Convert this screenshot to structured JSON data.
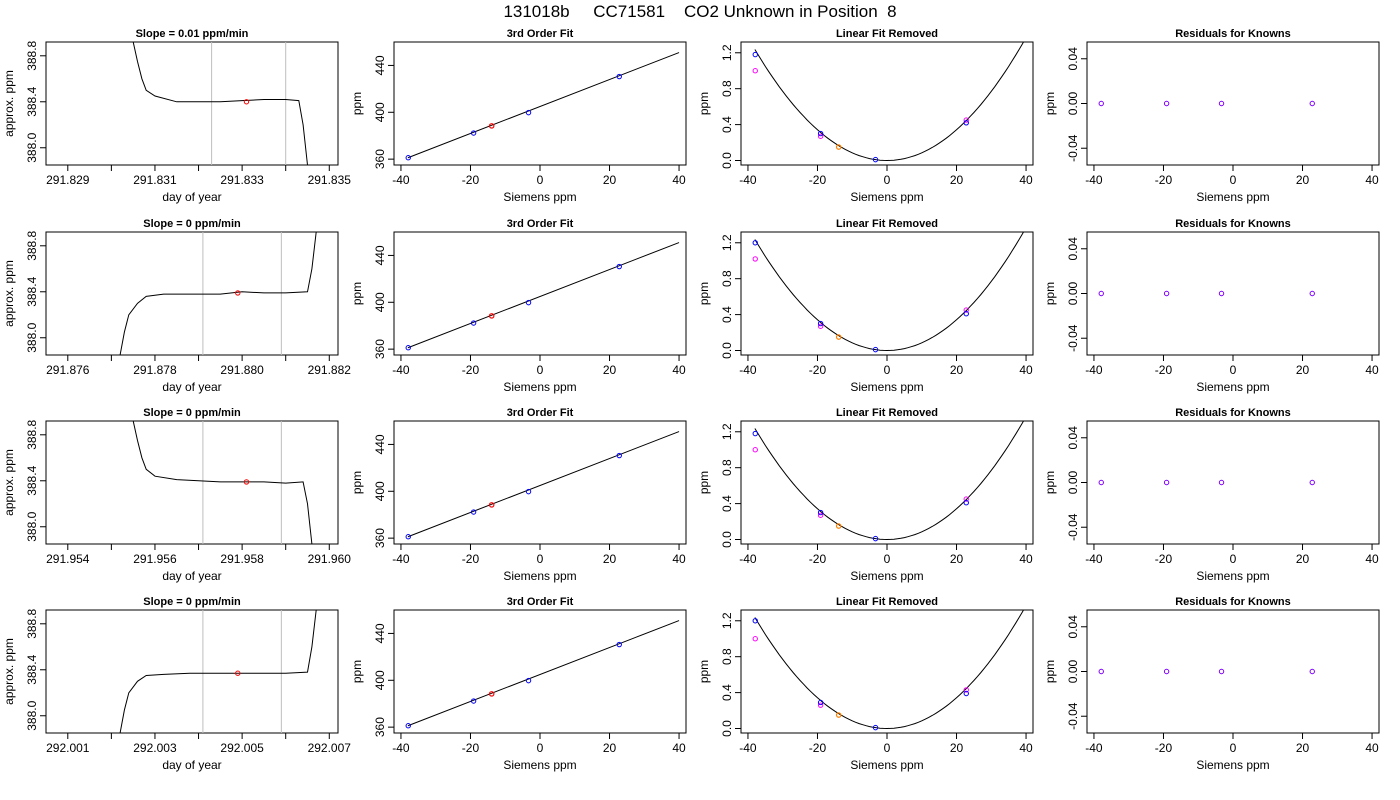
{
  "header": {
    "title": "131018b     CC71581    CO2 Unknown in Position  8"
  },
  "chart_data": [
    {
      "type": "line",
      "row": 0,
      "col": 0,
      "title": "Slope =  0.01  ppm/min",
      "xlabel": "day of year",
      "ylabel": "approx. ppm",
      "xlim": [
        291.8285,
        291.8352
      ],
      "ylim": [
        387.85,
        388.92
      ],
      "xticks": [
        "291.829",
        "291.830",
        "291.831",
        "291.832",
        "291.833",
        "291.834",
        "291.835"
      ],
      "xtick_labels": [
        "291.829",
        "",
        "291.831",
        "",
        "291.833",
        "",
        "291.835"
      ],
      "yticks": [
        "388.0",
        "388.4",
        "388.8"
      ],
      "vlines": [
        291.8323,
        291.834
      ],
      "trace": [
        [
          291.8305,
          388.92
        ],
        [
          291.8306,
          388.75
        ],
        [
          291.8307,
          388.6
        ],
        [
          291.8308,
          388.5
        ],
        [
          291.831,
          388.45
        ],
        [
          291.8315,
          388.4
        ],
        [
          291.832,
          388.4
        ],
        [
          291.8325,
          388.4
        ],
        [
          291.833,
          388.41
        ],
        [
          291.8335,
          388.42
        ],
        [
          291.834,
          388.42
        ],
        [
          291.8343,
          388.41
        ],
        [
          291.8344,
          388.2
        ],
        [
          291.8345,
          387.85
        ]
      ],
      "marker": [
        291.8331,
        388.4
      ]
    },
    {
      "type": "scatter",
      "row": 0,
      "col": 1,
      "title": "3rd Order Fit",
      "xlabel": "Siemens ppm",
      "ylabel": "ppm",
      "xlim": [
        -42,
        42
      ],
      "ylim": [
        355,
        460
      ],
      "xticks": [
        "-40",
        "-20",
        "0",
        "20",
        "40"
      ],
      "yticks": [
        "360",
        "400",
        "440"
      ],
      "fit_line": [
        [
          -38,
          361.2
        ],
        [
          40,
          451
        ]
      ],
      "points_known": [
        [
          -37.9,
          361.2
        ],
        [
          -19.1,
          382.3
        ],
        [
          -3.3,
          399.7
        ],
        [
          22.8,
          430.5
        ]
      ],
      "point_unknown": [
        -13.9,
        388.4
      ]
    },
    {
      "type": "scatter",
      "row": 0,
      "col": 2,
      "title": "Linear Fit Removed",
      "xlabel": "Siemens ppm",
      "ylabel": "ppm",
      "xlim": [
        -42,
        42
      ],
      "ylim": [
        -0.05,
        1.32
      ],
      "xticks": [
        "-40",
        "-20",
        "0",
        "20",
        "40"
      ],
      "yticks": [
        "0.0",
        "0.4",
        "0.8",
        "1.2"
      ],
      "curve": {
        "a": 0.000856,
        "vertex": 0,
        "xmin": -38,
        "xmax": 40
      },
      "points_known": [
        [
          -37.9,
          1.18
        ],
        [
          -19.1,
          0.3
        ],
        [
          -3.3,
          0.01
        ],
        [
          22.8,
          0.42
        ]
      ],
      "points_magenta": [
        [
          -37.9,
          1.0
        ],
        [
          -19.1,
          0.27
        ],
        [
          22.8,
          0.45
        ]
      ],
      "point_unknown": [
        -13.9,
        0.15
      ]
    },
    {
      "type": "scatter",
      "row": 0,
      "col": 3,
      "title": "Residuals for Knowns",
      "xlabel": "Siemens ppm",
      "ylabel": "ppm",
      "xlim": [
        -42,
        42
      ],
      "ylim": [
        -0.055,
        0.055
      ],
      "xticks": [
        "-40",
        "-20",
        "0",
        "20",
        "40"
      ],
      "yticks": [
        "-0.04",
        "0.00",
        "0.04"
      ],
      "points": [
        [
          -37.9,
          0
        ],
        [
          -19.1,
          0
        ],
        [
          -3.3,
          0
        ],
        [
          22.8,
          0
        ]
      ]
    },
    {
      "type": "line",
      "row": 1,
      "col": 0,
      "title": "Slope =  0  ppm/min",
      "xlabel": "day of year",
      "ylabel": "approx. ppm",
      "xlim": [
        291.8755,
        291.8822
      ],
      "ylim": [
        387.85,
        388.92
      ],
      "xticks": [
        "291.876",
        "291.877",
        "291.878",
        "291.879",
        "291.880",
        "291.881",
        "291.882"
      ],
      "xtick_labels": [
        "291.876",
        "",
        "291.878",
        "",
        "291.880",
        "",
        "291.882"
      ],
      "yticks": [
        "388.0",
        "388.4",
        "388.8"
      ],
      "vlines": [
        291.8791,
        291.8809
      ],
      "trace": [
        [
          291.8772,
          387.85
        ],
        [
          291.8773,
          388.05
        ],
        [
          291.8774,
          388.2
        ],
        [
          291.8776,
          388.3
        ],
        [
          291.8778,
          388.36
        ],
        [
          291.8782,
          388.38
        ],
        [
          291.8788,
          388.38
        ],
        [
          291.8795,
          388.38
        ],
        [
          291.88,
          388.4
        ],
        [
          291.8805,
          388.39
        ],
        [
          291.881,
          388.39
        ],
        [
          291.8815,
          388.4
        ],
        [
          291.8816,
          388.6
        ],
        [
          291.8817,
          388.92
        ]
      ],
      "marker": [
        291.8799,
        388.39
      ]
    },
    {
      "type": "scatter",
      "row": 1,
      "col": 1,
      "title": "3rd Order Fit",
      "xlabel": "Siemens ppm",
      "ylabel": "ppm",
      "xlim": [
        -42,
        42
      ],
      "ylim": [
        355,
        460
      ],
      "xticks": [
        "-40",
        "-20",
        "0",
        "20",
        "40"
      ],
      "yticks": [
        "360",
        "400",
        "440"
      ],
      "fit_line": [
        [
          -38,
          361.2
        ],
        [
          40,
          451
        ]
      ],
      "points_known": [
        [
          -37.9,
          361.2
        ],
        [
          -19.1,
          382.3
        ],
        [
          -3.3,
          399.7
        ],
        [
          22.8,
          430.5
        ]
      ],
      "point_unknown": [
        -13.9,
        388.4
      ]
    },
    {
      "type": "scatter",
      "row": 1,
      "col": 2,
      "title": "Linear Fit Removed",
      "xlabel": "Siemens ppm",
      "ylabel": "ppm",
      "xlim": [
        -42,
        42
      ],
      "ylim": [
        -0.05,
        1.32
      ],
      "xticks": [
        "-40",
        "-20",
        "0",
        "20",
        "40"
      ],
      "yticks": [
        "0.0",
        "0.4",
        "0.8",
        "1.2"
      ],
      "curve": {
        "a": 0.000856,
        "vertex": 0,
        "xmin": -38,
        "xmax": 40
      },
      "points_known": [
        [
          -37.9,
          1.2
        ],
        [
          -19.1,
          0.3
        ],
        [
          -3.3,
          0.01
        ],
        [
          22.8,
          0.41
        ]
      ],
      "points_magenta": [
        [
          -37.9,
          1.02
        ],
        [
          -19.1,
          0.27
        ],
        [
          22.8,
          0.45
        ]
      ],
      "point_unknown": [
        -13.9,
        0.15
      ]
    },
    {
      "type": "scatter",
      "row": 1,
      "col": 3,
      "title": "Residuals for Knowns",
      "xlabel": "Siemens ppm",
      "ylabel": "ppm",
      "xlim": [
        -42,
        42
      ],
      "ylim": [
        -0.055,
        0.055
      ],
      "xticks": [
        "-40",
        "-20",
        "0",
        "20",
        "40"
      ],
      "yticks": [
        "-0.04",
        "0.00",
        "0.04"
      ],
      "points": [
        [
          -37.9,
          0
        ],
        [
          -19.1,
          0
        ],
        [
          -3.3,
          0
        ],
        [
          22.8,
          0
        ]
      ]
    },
    {
      "type": "line",
      "row": 2,
      "col": 0,
      "title": "Slope =  0  ppm/min",
      "xlabel": "day of year",
      "ylabel": "approx. ppm",
      "xlim": [
        291.9535,
        291.9602
      ],
      "ylim": [
        387.85,
        388.92
      ],
      "xticks": [
        "291.954",
        "291.955",
        "291.956",
        "291.957",
        "291.958",
        "291.959",
        "291.960"
      ],
      "xtick_labels": [
        "291.954",
        "",
        "291.956",
        "",
        "291.958",
        "",
        "291.960"
      ],
      "yticks": [
        "388.0",
        "388.4",
        "388.8"
      ],
      "vlines": [
        291.9571,
        291.9589
      ],
      "trace": [
        [
          291.9555,
          388.92
        ],
        [
          291.9556,
          388.75
        ],
        [
          291.9557,
          388.6
        ],
        [
          291.9558,
          388.5
        ],
        [
          291.956,
          388.44
        ],
        [
          291.9565,
          388.41
        ],
        [
          291.957,
          388.4
        ],
        [
          291.9575,
          388.39
        ],
        [
          291.958,
          388.39
        ],
        [
          291.9585,
          388.39
        ],
        [
          291.959,
          388.38
        ],
        [
          291.9594,
          388.39
        ],
        [
          291.9595,
          388.2
        ],
        [
          291.9596,
          387.85
        ]
      ],
      "marker": [
        291.9581,
        388.39
      ]
    },
    {
      "type": "scatter",
      "row": 2,
      "col": 1,
      "title": "3rd Order Fit",
      "xlabel": "Siemens ppm",
      "ylabel": "ppm",
      "xlim": [
        -42,
        42
      ],
      "ylim": [
        355,
        460
      ],
      "xticks": [
        "-40",
        "-20",
        "0",
        "20",
        "40"
      ],
      "yticks": [
        "360",
        "400",
        "440"
      ],
      "fit_line": [
        [
          -38,
          361.2
        ],
        [
          40,
          451
        ]
      ],
      "points_known": [
        [
          -37.9,
          361.2
        ],
        [
          -19.1,
          382.3
        ],
        [
          -3.3,
          399.7
        ],
        [
          22.8,
          430.5
        ]
      ],
      "point_unknown": [
        -13.9,
        388.4
      ]
    },
    {
      "type": "scatter",
      "row": 2,
      "col": 2,
      "title": "Linear Fit Removed",
      "xlabel": "Siemens ppm",
      "ylabel": "ppm",
      "xlim": [
        -42,
        42
      ],
      "ylim": [
        -0.05,
        1.32
      ],
      "xticks": [
        "-40",
        "-20",
        "0",
        "20",
        "40"
      ],
      "yticks": [
        "0.0",
        "0.4",
        "0.8",
        "1.2"
      ],
      "curve": {
        "a": 0.000856,
        "vertex": 0,
        "xmin": -38,
        "xmax": 40
      },
      "points_known": [
        [
          -37.9,
          1.18
        ],
        [
          -19.1,
          0.3
        ],
        [
          -3.3,
          0.01
        ],
        [
          22.8,
          0.41
        ]
      ],
      "points_magenta": [
        [
          -37.9,
          1.0
        ],
        [
          -19.1,
          0.27
        ],
        [
          22.8,
          0.45
        ]
      ],
      "point_unknown": [
        -13.9,
        0.15
      ]
    },
    {
      "type": "scatter",
      "row": 2,
      "col": 3,
      "title": "Residuals for Knowns",
      "xlabel": "Siemens ppm",
      "ylabel": "ppm",
      "xlim": [
        -42,
        42
      ],
      "ylim": [
        -0.055,
        0.055
      ],
      "xticks": [
        "-40",
        "-20",
        "0",
        "20",
        "40"
      ],
      "yticks": [
        "-0.04",
        "0.00",
        "0.04"
      ],
      "points": [
        [
          -37.9,
          0
        ],
        [
          -19.1,
          0
        ],
        [
          -3.3,
          0
        ],
        [
          22.8,
          0
        ]
      ]
    },
    {
      "type": "line",
      "row": 3,
      "col": 0,
      "title": "Slope =  0  ppm/min",
      "xlabel": "day of year",
      "ylabel": "approx. ppm",
      "xlim": [
        292.0005,
        292.0072
      ],
      "ylim": [
        387.85,
        388.92
      ],
      "xticks": [
        "292.001",
        "292.002",
        "292.003",
        "292.004",
        "292.005",
        "292.006",
        "292.007"
      ],
      "xtick_labels": [
        "292.001",
        "",
        "292.003",
        "",
        "292.005",
        "",
        "292.007"
      ],
      "yticks": [
        "388.0",
        "388.4",
        "388.8"
      ],
      "vlines": [
        292.0041,
        292.0059
      ],
      "trace": [
        [
          292.0022,
          387.85
        ],
        [
          292.0023,
          388.05
        ],
        [
          292.0024,
          388.2
        ],
        [
          292.0026,
          388.3
        ],
        [
          292.0028,
          388.35
        ],
        [
          292.0032,
          388.36
        ],
        [
          292.0038,
          388.37
        ],
        [
          292.0045,
          388.37
        ],
        [
          292.005,
          388.37
        ],
        [
          292.0055,
          388.37
        ],
        [
          292.006,
          388.37
        ],
        [
          292.0065,
          388.38
        ],
        [
          292.0066,
          388.6
        ],
        [
          292.0067,
          388.92
        ]
      ],
      "marker": [
        292.0049,
        388.37
      ]
    },
    {
      "type": "scatter",
      "row": 3,
      "col": 1,
      "title": "3rd Order Fit",
      "xlabel": "Siemens ppm",
      "ylabel": "ppm",
      "xlim": [
        -42,
        42
      ],
      "ylim": [
        355,
        460
      ],
      "xticks": [
        "-40",
        "-20",
        "0",
        "20",
        "40"
      ],
      "yticks": [
        "360",
        "400",
        "440"
      ],
      "fit_line": [
        [
          -38,
          361.2
        ],
        [
          40,
          451
        ]
      ],
      "points_known": [
        [
          -37.9,
          361.2
        ],
        [
          -19.1,
          382.3
        ],
        [
          -3.3,
          399.7
        ],
        [
          22.8,
          430.5
        ]
      ],
      "point_unknown": [
        -13.9,
        388.4
      ]
    },
    {
      "type": "scatter",
      "row": 3,
      "col": 2,
      "title": "Linear Fit Removed",
      "xlabel": "Siemens ppm",
      "ylabel": "ppm",
      "xlim": [
        -42,
        42
      ],
      "ylim": [
        -0.05,
        1.32
      ],
      "xticks": [
        "-40",
        "-20",
        "0",
        "20",
        "40"
      ],
      "yticks": [
        "0.0",
        "0.4",
        "0.8",
        "1.2"
      ],
      "curve": {
        "a": 0.000856,
        "vertex": 0,
        "xmin": -38,
        "xmax": 40
      },
      "points_known": [
        [
          -37.9,
          1.2
        ],
        [
          -19.1,
          0.29
        ],
        [
          -3.3,
          0.01
        ],
        [
          22.8,
          0.39
        ]
      ],
      "points_magenta": [
        [
          -37.9,
          1.0
        ],
        [
          -19.1,
          0.26
        ],
        [
          22.8,
          0.43
        ]
      ],
      "point_unknown": [
        -13.9,
        0.15
      ]
    },
    {
      "type": "scatter",
      "row": 3,
      "col": 3,
      "title": "Residuals for Knowns",
      "xlabel": "Siemens ppm",
      "ylabel": "ppm",
      "xlim": [
        -42,
        42
      ],
      "ylim": [
        -0.055,
        0.055
      ],
      "xticks": [
        "-40",
        "-20",
        "0",
        "20",
        "40"
      ],
      "yticks": [
        "-0.04",
        "0.00",
        "0.04"
      ],
      "points": [
        [
          -37.9,
          0
        ],
        [
          -19.1,
          0
        ],
        [
          -3.3,
          0
        ],
        [
          22.8,
          0
        ]
      ]
    }
  ],
  "colors": {
    "trace": "#000000",
    "known": "#0000ff",
    "magenta": "#ff00ff",
    "unknown": "#ff0000",
    "unknown_fit": "#ff8000",
    "vline": "#bebebe",
    "residual": "#8000ff"
  }
}
